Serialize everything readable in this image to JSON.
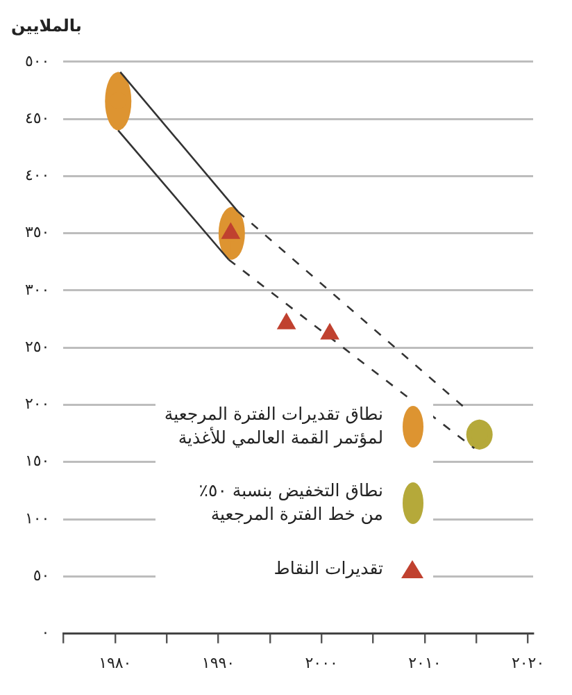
{
  "chart_data": {
    "type": "scatter",
    "ylabel": "بالملايين",
    "xlim": [
      1975,
      2020.5
    ],
    "xticks": [
      {
        "value": 1975,
        "label": null
      },
      {
        "value": 1980,
        "label": "١٩٨٠"
      },
      {
        "value": 1985,
        "label": null
      },
      {
        "value": 1990,
        "label": "١٩٩٠"
      },
      {
        "value": 1995,
        "label": null
      },
      {
        "value": 2000,
        "label": "٢٠٠٠"
      },
      {
        "value": 2005,
        "label": null
      },
      {
        "value": 2010,
        "label": "٢٠١٠"
      },
      {
        "value": 2015,
        "label": null
      },
      {
        "value": 2020,
        "label": "٢٠٢٠"
      }
    ],
    "ylim": [
      0,
      500
    ],
    "yticks": [
      {
        "value": 0,
        "label": "٠"
      },
      {
        "value": 50,
        "label": "٥٠"
      },
      {
        "value": 100,
        "label": "١٠٠"
      },
      {
        "value": 150,
        "label": "١٥٠"
      },
      {
        "value": 200,
        "label": "٢٠٠"
      },
      {
        "value": 250,
        "label": "٢٥٠"
      },
      {
        "value": 300,
        "label": "٣٠٠"
      },
      {
        "value": 350,
        "label": "٣٥٠"
      },
      {
        "value": 400,
        "label": "٤٠٠"
      },
      {
        "value": 450,
        "label": "٤٥٠"
      },
      {
        "value": 500,
        "label": "٥٠٠"
      }
    ],
    "grid": "y",
    "legend": "bottom",
    "series": [
      {
        "type": "line",
        "color": "#333333",
        "line_style": "solid",
        "marker": "none",
        "x": [
          1980.5,
          1991.9
        ],
        "values": [
          491,
          369
        ]
      },
      {
        "type": "line",
        "color": "#333333",
        "line_style": "dashed",
        "marker": "none",
        "x": [
          1991.9,
          2013.8
        ],
        "values": [
          369,
          198
        ]
      },
      {
        "type": "line",
        "color": "#333333",
        "line_style": "solid",
        "marker": "none",
        "x": [
          1980.3,
          1991
        ],
        "values": [
          440,
          327
        ]
      },
      {
        "type": "line",
        "color": "#333333",
        "line_style": "dashed",
        "marker": "none",
        "x": [
          1991,
          2014.8
        ],
        "values": [
          327,
          162
        ]
      },
      {
        "name": "نطاق تقديرات الفترة المرجعية\nلمؤتمر القمة العالمي للأغذية",
        "color": "#dd9431",
        "marker": "circle",
        "x": [
          1980.3,
          1991.3
        ],
        "values": [
          466,
          350
        ],
        "errors": [
          [
            440,
            491
          ],
          [
            327,
            373
          ]
        ]
      },
      {
        "name": "نطاق التخفيض بنسبة ٥٠٪\nمن خط الفترة المرجعية",
        "color": "#b5a93a",
        "marker": "circle",
        "x": [
          2015.3
        ],
        "values": [
          174
        ],
        "errors": [
          [
            161,
            187
          ]
        ]
      },
      {
        "name": "تقديرات النقاط",
        "color": "#c0412f",
        "marker": "triangle",
        "x": [
          1991.2,
          1996.6,
          2000.8
        ],
        "values": [
          350,
          271,
          262
        ]
      }
    ]
  }
}
